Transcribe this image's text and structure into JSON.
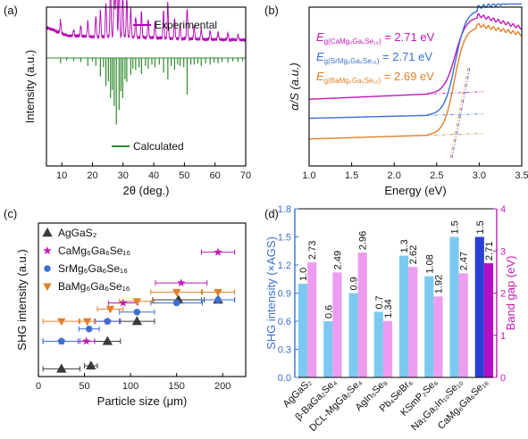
{
  "chart_data": [
    {
      "panel": "(a)",
      "type": "line",
      "xlabel": "2θ (deg.)",
      "ylabel": "Intensity (a.u.)",
      "xlim": [
        5,
        70
      ],
      "xticks": [
        10,
        20,
        30,
        40,
        50,
        60,
        70
      ],
      "legend_placement": "inside",
      "series": [
        {
          "name": "Experimental",
          "color": "#b400b4",
          "style": "upward line pattern",
          "baseline": 0.78,
          "background": [
            [
              5,
              0.14
            ],
            [
              12,
              0.06
            ],
            [
              20,
              0.05
            ],
            [
              30,
              0.05
            ],
            [
              50,
              0.03
            ],
            [
              70,
              0.02
            ]
          ],
          "peaks": [
            [
              9.6,
              0.12
            ],
            [
              13.9,
              0.06
            ],
            [
              16.2,
              0.1
            ],
            [
              18.5,
              0.15
            ],
            [
              21.1,
              0.2
            ],
            [
              22.6,
              0.25
            ],
            [
              24.4,
              0.32
            ],
            [
              25.9,
              0.5
            ],
            [
              27.1,
              0.62
            ],
            [
              27.8,
              1.0
            ],
            [
              28.7,
              0.55
            ],
            [
              29.9,
              0.42
            ],
            [
              31.2,
              0.38
            ],
            [
              32.5,
              0.28
            ],
            [
              34.1,
              0.2
            ],
            [
              36.0,
              0.25
            ],
            [
              38.2,
              0.18
            ],
            [
              40.4,
              0.15
            ],
            [
              43.2,
              0.26
            ],
            [
              44.6,
              0.34
            ],
            [
              46.8,
              0.2
            ],
            [
              48.6,
              0.14
            ],
            [
              50.9,
              0.3
            ],
            [
              53.2,
              0.12
            ],
            [
              55.5,
              0.1
            ],
            [
              58.4,
              0.08
            ],
            [
              61.0,
              0.07
            ],
            [
              64.2,
              0.06
            ],
            [
              67.5,
              0.05
            ]
          ]
        },
        {
          "name": "Calculated",
          "color": "#2e8b2e",
          "style": "downward sticks",
          "baseline": 0.68,
          "sticks": [
            [
              9.6,
              0.08
            ],
            [
              11.6,
              0.04
            ],
            [
              13.9,
              0.05
            ],
            [
              16.2,
              0.06
            ],
            [
              18.5,
              0.12
            ],
            [
              20.0,
              0.05
            ],
            [
              21.1,
              0.12
            ],
            [
              22.6,
              0.28
            ],
            [
              23.6,
              0.14
            ],
            [
              24.4,
              0.42
            ],
            [
              25.2,
              0.35
            ],
            [
              25.9,
              0.6
            ],
            [
              26.5,
              0.48
            ],
            [
              27.1,
              0.72
            ],
            [
              27.8,
              1.0
            ],
            [
              28.7,
              0.78
            ],
            [
              29.3,
              0.5
            ],
            [
              29.9,
              0.6
            ],
            [
              30.6,
              0.32
            ],
            [
              31.2,
              0.36
            ],
            [
              32.5,
              0.25
            ],
            [
              33.2,
              0.16
            ],
            [
              34.1,
              0.18
            ],
            [
              35.2,
              0.14
            ],
            [
              36.0,
              0.24
            ],
            [
              37.3,
              0.12
            ],
            [
              38.2,
              0.16
            ],
            [
              39.4,
              0.1
            ],
            [
              40.4,
              0.14
            ],
            [
              41.8,
              0.1
            ],
            [
              43.2,
              0.22
            ],
            [
              44.6,
              0.32
            ],
            [
              45.7,
              0.12
            ],
            [
              46.8,
              0.18
            ],
            [
              47.8,
              0.1
            ],
            [
              48.6,
              0.12
            ],
            [
              49.8,
              0.14
            ],
            [
              50.9,
              0.55
            ],
            [
              52.1,
              0.1
            ],
            [
              53.2,
              0.1
            ],
            [
              54.4,
              0.08
            ],
            [
              55.5,
              0.12
            ],
            [
              56.9,
              0.08
            ],
            [
              58.4,
              0.1
            ],
            [
              59.7,
              0.07
            ],
            [
              61.0,
              0.08
            ],
            [
              62.3,
              0.06
            ],
            [
              64.2,
              0.07
            ],
            [
              65.8,
              0.05
            ],
            [
              67.5,
              0.06
            ],
            [
              69.0,
              0.05
            ]
          ]
        }
      ]
    },
    {
      "panel": "(b)",
      "type": "line",
      "xlabel": "Energy (eV)",
      "ylabel": "α/S (a.u.)",
      "xlim": [
        1.0,
        3.5
      ],
      "xticks": [
        "1.0",
        "1.5",
        "2.0",
        "2.5",
        "3.0",
        "3.5"
      ],
      "annotations": [
        {
          "label": "E",
          "sub": "g(CaMg₆Ga₆Se₁₆)",
          "value": " = 2.71 eV",
          "color": "#c01bb8"
        },
        {
          "label": "E",
          "sub": "g(SrMg₆Ga₆Se₁₆)",
          "value": " = 2.71 eV",
          "color": "#3b6fd4"
        },
        {
          "label": "E",
          "sub": "g(BaMg₆Ga₆Se₁₆)",
          "value": " = 2.69 eV",
          "color": "#e0802a"
        }
      ],
      "series": [
        {
          "name": "CaMg6Ga6Se16",
          "color": "#c01bb8",
          "base": 0.42,
          "slope": 0.035,
          "edge": 2.71,
          "top": 0.95,
          "decline": 0.08
        },
        {
          "name": "SrMg6Ga6Se16",
          "color": "#3b6fd4",
          "base": 0.3,
          "slope": 0.02,
          "edge": 2.71,
          "top": 1.0,
          "decline": -0.04
        },
        {
          "name": "BaMg6Ga6Se16",
          "color": "#e0802a",
          "base": 0.17,
          "slope": 0.025,
          "edge": 2.69,
          "top": 0.89,
          "decline": 0.06
        }
      ]
    },
    {
      "panel": "(c)",
      "type": "scatter",
      "xlabel": "Particle size (μm)",
      "ylabel": "SHG intensity (a.u.)",
      "xlim": [
        0,
        225
      ],
      "xticks": [
        0,
        50,
        100,
        150,
        200
      ],
      "ylim": [
        0,
        1
      ],
      "legend_placement": "top-left",
      "series": [
        {
          "name": "AgGaS₂",
          "marker": "triangle",
          "color": "#3a3a3a",
          "points": [
            {
              "x": 25,
              "y": 0.05,
              "xerr": 20
            },
            {
              "x": 57,
              "y": 0.07,
              "xerr": 7
            },
            {
              "x": 75,
              "y": 0.23,
              "xerr": 14
            },
            {
              "x": 107,
              "y": 0.36,
              "xerr": 19
            },
            {
              "x": 152,
              "y": 0.5,
              "xerr": 28
            },
            {
              "x": 195,
              "y": 0.5,
              "xerr": 18
            }
          ]
        },
        {
          "name": "CaMg₆Ga₆Se₁₆",
          "marker": "star",
          "color": "#c01bb8",
          "points": [
            {
              "x": 25,
              "y": 0.23,
              "xerr": 20
            },
            {
              "x": 52,
              "y": 0.23,
              "xerr": 9
            },
            {
              "x": 75,
              "y": 0.36,
              "xerr": 14
            },
            {
              "x": 92,
              "y": 0.48,
              "xerr": 16
            },
            {
              "x": 155,
              "y": 0.61,
              "xerr": 28
            },
            {
              "x": 195,
              "y": 0.81,
              "xerr": 18
            }
          ]
        },
        {
          "name": "SrMg₆Ga₆Se₁₆",
          "marker": "circle",
          "color": "#3b6fd4",
          "points": [
            {
              "x": 25,
              "y": 0.23,
              "xerr": 20
            },
            {
              "x": 55,
              "y": 0.31,
              "xerr": 11
            },
            {
              "x": 75,
              "y": 0.36,
              "xerr": 14
            },
            {
              "x": 107,
              "y": 0.42,
              "xerr": 19
            },
            {
              "x": 150,
              "y": 0.48,
              "xerr": 28
            },
            {
              "x": 195,
              "y": 0.5,
              "xerr": 18
            }
          ]
        },
        {
          "name": "BaMg₆Ga₆Se₁₆",
          "marker": "triangle-down",
          "color": "#e0802a",
          "points": [
            {
              "x": 25,
              "y": 0.36,
              "xerr": 20
            },
            {
              "x": 53,
              "y": 0.36,
              "xerr": 9
            },
            {
              "x": 78,
              "y": 0.44,
              "xerr": 14
            },
            {
              "x": 107,
              "y": 0.49,
              "xerr": 19
            },
            {
              "x": 150,
              "y": 0.55,
              "xerr": 28
            },
            {
              "x": 195,
              "y": 0.55,
              "xerr": 18
            }
          ]
        }
      ]
    },
    {
      "panel": "(d)",
      "type": "bar",
      "ylabel_left": "SHG intensity (×AGS)",
      "ylabel_right": "Band gap (eV)",
      "ylim_left": [
        0,
        1.8
      ],
      "yticks_left": [
        "0.0",
        "0.3",
        "0.6",
        "0.9",
        "1.2",
        "1.5",
        "1.8"
      ],
      "ylim_right": [
        0,
        4
      ],
      "yticks_right": [
        "0",
        "1",
        "2",
        "3",
        "4"
      ],
      "categories": [
        "AgGaS₂",
        "β-BaGa₂Se₄",
        "DCL-MgGa₂Se₄",
        "AgIn₅Se₈",
        "Pb₄SeBr₆",
        "KSmP₂Se₆",
        "Na₂Ga₂In₁₀Se₁₀",
        "CaMg₆Ga₆Se₁₆"
      ],
      "series": [
        {
          "name": "SHG intensity",
          "axis": "left",
          "color": "#7cc9f0",
          "highlight_color": "#2a3fd6",
          "values": [
            1.0,
            0.6,
            0.9,
            0.7,
            1.3,
            1.08,
            1.5,
            1.5
          ],
          "labels": [
            "1.0",
            "0.6",
            "0.9",
            "0.7",
            "1.3",
            "1.08",
            "1.5",
            "1.5"
          ]
        },
        {
          "name": "Band gap",
          "axis": "right",
          "color": "#ee9cf0",
          "highlight_color": "#b40fc4",
          "values": [
            2.73,
            2.49,
            2.96,
            1.34,
            2.62,
            1.92,
            2.47,
            2.71
          ],
          "labels": [
            "2.73",
            "2.49",
            "2.96",
            "1.34",
            "2.62",
            "1.92",
            "2.47",
            "2.71"
          ]
        }
      ]
    }
  ]
}
